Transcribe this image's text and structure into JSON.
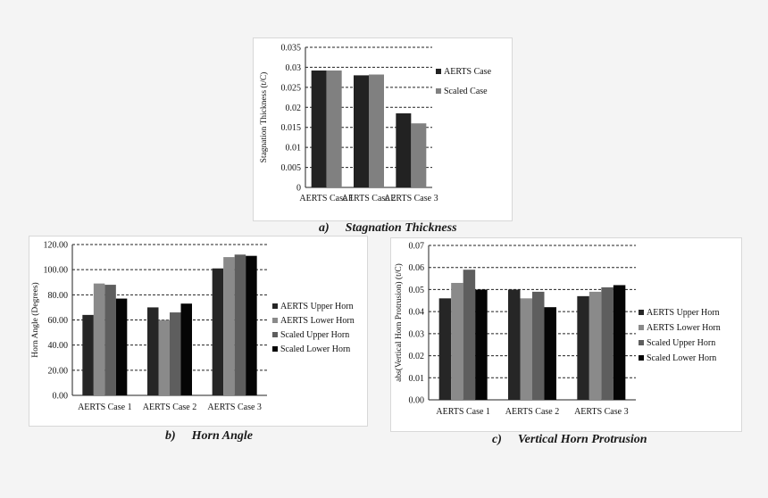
{
  "captions": [
    {
      "letter": "a)",
      "title": "Stagnation Thickness"
    },
    {
      "letter": "b)",
      "title": "Horn Angle"
    },
    {
      "letter": "c)",
      "title": "Vertical Horn Protrusion"
    }
  ],
  "colors": {
    "aerts": "#222222",
    "scaled": "#808080",
    "aerts_upper": "#262626",
    "aerts_lower": "#8a8a8a",
    "scaled_upper": "#5e5e5e",
    "scaled_lower": "#050505"
  },
  "chart_data": [
    {
      "type": "bar",
      "title": "",
      "ylabel": "Stagnation Thickness (t/C)",
      "xlabel": "",
      "categories": [
        "AERTS Case 1",
        "AERTS Case 2",
        "AERTS Case 3"
      ],
      "ylim": [
        0,
        0.035
      ],
      "yticks": [
        "0",
        "0.005",
        "0.01",
        "0.015",
        "0.02",
        "0.025",
        "0.03",
        "0.035"
      ],
      "tick_step": 0.005,
      "grid": "dashed",
      "legend_position": "right",
      "series": [
        {
          "name": "AERTS Case",
          "color_key": "aerts",
          "values": [
            0.0292,
            0.028,
            0.0185
          ]
        },
        {
          "name": "Scaled Case",
          "color_key": "scaled",
          "values": [
            0.0292,
            0.0282,
            0.016
          ]
        }
      ]
    },
    {
      "type": "bar",
      "title": "",
      "ylabel": "Horn Angle (Degrees)",
      "xlabel": "",
      "categories": [
        "AERTS Case 1",
        "AERTS Case 2",
        "AERTS Case 3"
      ],
      "ylim": [
        0,
        120
      ],
      "yticks": [
        "0.00",
        "20.00",
        "40.00",
        "60.00",
        "80.00",
        "100.00",
        "120.00"
      ],
      "tick_step": 20,
      "grid": "dashed",
      "legend_position": "right",
      "series": [
        {
          "name": "AERTS Upper Horn",
          "color_key": "aerts_upper",
          "values": [
            64,
            70,
            101
          ]
        },
        {
          "name": "AERTS Lower Horn",
          "color_key": "aerts_lower",
          "values": [
            89,
            60,
            110
          ]
        },
        {
          "name": "Scaled Upper Horn",
          "color_key": "scaled_upper",
          "values": [
            88,
            66,
            112
          ]
        },
        {
          "name": "Scaled Lower Horn",
          "color_key": "scaled_lower",
          "values": [
            77,
            73,
            111
          ]
        }
      ]
    },
    {
      "type": "bar",
      "title": "",
      "ylabel": "abs(Vertical Horn Protrusion) (t/C)",
      "xlabel": "",
      "categories": [
        "AERTS Case 1",
        "AERTS Case 2",
        "AERTS Case 3"
      ],
      "ylim": [
        0,
        0.07
      ],
      "yticks": [
        "0.00",
        "0.01",
        "0.02",
        "0.03",
        "0.04",
        "0.05",
        "0.06",
        "0.07"
      ],
      "tick_step": 0.01,
      "grid": "dashed",
      "legend_position": "right",
      "series": [
        {
          "name": "AERTS Upper Horn",
          "color_key": "aerts_upper",
          "values": [
            0.046,
            0.05,
            0.047
          ]
        },
        {
          "name": "AERTS Lower Horn",
          "color_key": "aerts_lower",
          "values": [
            0.053,
            0.046,
            0.049
          ]
        },
        {
          "name": "Scaled Upper Horn",
          "color_key": "scaled_upper",
          "values": [
            0.059,
            0.049,
            0.051
          ]
        },
        {
          "name": "Scaled Lower Horn",
          "color_key": "scaled_lower",
          "values": [
            0.05,
            0.042,
            0.052
          ]
        }
      ]
    }
  ]
}
